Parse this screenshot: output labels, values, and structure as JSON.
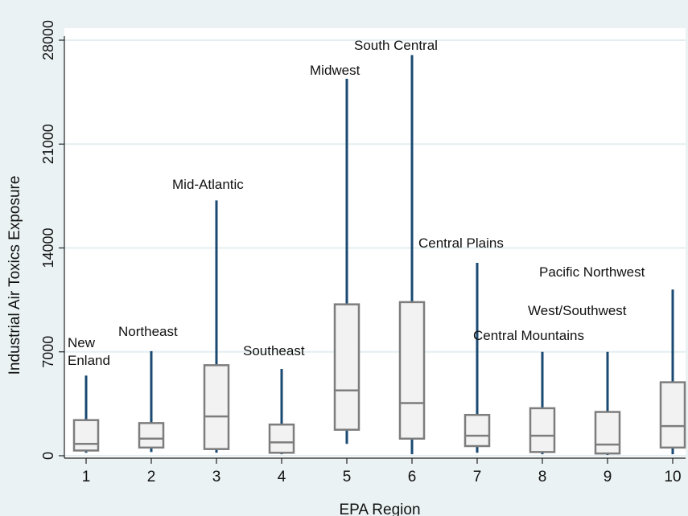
{
  "chart_data": {
    "type": "box",
    "title": "",
    "xlabel": "EPA Region",
    "ylabel": "Industrial Air Toxics Exposure",
    "ylim": [
      0,
      28000
    ],
    "yticks": [
      "0",
      "7000",
      "14000",
      "21000",
      "28000"
    ],
    "ytick_values": [
      0,
      7000,
      14000,
      21000,
      28000
    ],
    "grid": true,
    "colors": {
      "background": "#eaf2f3",
      "plot_background": "#ffffff",
      "whisker": "#1a4a72",
      "box_fill": "#f2f2f2",
      "box_stroke": "#7d7d7d",
      "grid": "#e4eef0"
    },
    "categories": [
      "1",
      "2",
      "3",
      "4",
      "5",
      "6",
      "7",
      "8",
      "9",
      "10"
    ],
    "region_names": [
      "New Enland",
      "Northeast",
      "Mid-Atlantic",
      "Southeast",
      "Midwest",
      "South Central",
      "Central Plains",
      "Central Mountains",
      "West/Southwest",
      "Pacific Northwest"
    ],
    "boxes": [
      {
        "category": "1",
        "min": 200,
        "q1": 350,
        "median": 800,
        "q3": 2400,
        "max": 5400
      },
      {
        "category": "2",
        "min": 250,
        "q1": 550,
        "median": 1150,
        "q3": 2200,
        "max": 7050
      },
      {
        "category": "3",
        "min": 200,
        "q1": 450,
        "median": 2650,
        "q3": 6100,
        "max": 17200
      },
      {
        "category": "4",
        "min": 100,
        "q1": 200,
        "median": 900,
        "q3": 2100,
        "max": 5850
      },
      {
        "category": "5",
        "min": 800,
        "q1": 1750,
        "median": 4400,
        "q3": 10200,
        "max": 25400
      },
      {
        "category": "6",
        "min": 100,
        "q1": 1150,
        "median": 3550,
        "q3": 10350,
        "max": 27000
      },
      {
        "category": "7",
        "min": 200,
        "q1": 650,
        "median": 1350,
        "q3": 2750,
        "max": 13000
      },
      {
        "category": "8",
        "min": 100,
        "q1": 250,
        "median": 1350,
        "q3": 3200,
        "max": 7000
      },
      {
        "category": "9",
        "min": 50,
        "q1": 150,
        "median": 750,
        "q3": 2950,
        "max": 7000
      },
      {
        "category": "10",
        "min": 100,
        "q1": 550,
        "median": 2000,
        "q3": 4950,
        "max": 11200
      }
    ]
  }
}
